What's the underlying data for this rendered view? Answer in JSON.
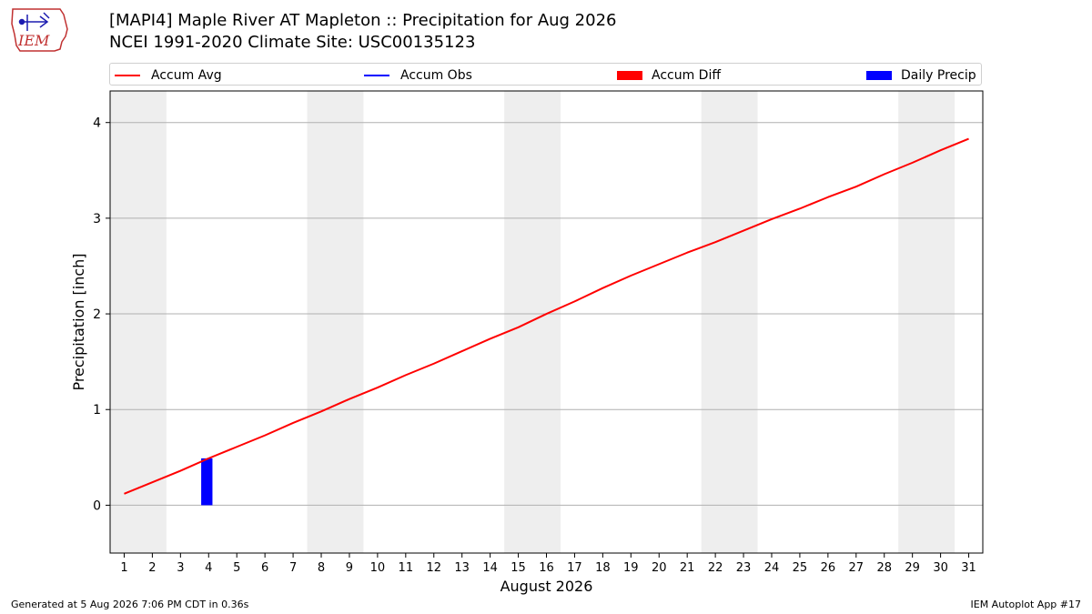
{
  "header": {
    "logo_text": "IEM",
    "title_line1": "[MAPI4] Maple River  AT Mapleton :: Precipitation for Aug 2026",
    "title_line2": "NCEI 1991-2020 Climate Site: USC00135123"
  },
  "legend": {
    "items": [
      {
        "label": "Accum Avg",
        "kind": "line",
        "color": "#ff0000"
      },
      {
        "label": "Accum Obs",
        "kind": "line",
        "color": "#0000ff"
      },
      {
        "label": "Accum Diff",
        "kind": "patch",
        "color": "#ff0000"
      },
      {
        "label": "Daily Precip",
        "kind": "patch",
        "color": "#0000ff"
      }
    ]
  },
  "colors": {
    "accum_avg": "#ff0000",
    "accum_obs": "#0000ff",
    "accum_diff": "#ff0000",
    "daily_precip": "#0000ff",
    "weekend_band": "#eeeeee",
    "grid": "#b0b0b0"
  },
  "chart_data": {
    "type": "line",
    "xlabel": "August 2026",
    "ylabel": "Precipitation [inch]",
    "x": [
      1,
      2,
      3,
      4,
      5,
      6,
      7,
      8,
      9,
      10,
      11,
      12,
      13,
      14,
      15,
      16,
      17,
      18,
      19,
      20,
      21,
      22,
      23,
      24,
      25,
      26,
      27,
      28,
      29,
      30,
      31
    ],
    "xlim": [
      0.5,
      31.5
    ],
    "ylim": [
      -0.5,
      4.33
    ],
    "yticks": [
      0,
      1,
      2,
      3,
      4
    ],
    "grid": "horizontal",
    "legend_position": "top",
    "shaded_weekends": [
      [
        1,
        2
      ],
      [
        8,
        9
      ],
      [
        15,
        16
      ],
      [
        22,
        23
      ],
      [
        29,
        30
      ]
    ],
    "series": [
      {
        "name": "Accum Avg",
        "kind": "line",
        "values": [
          0.12,
          0.24,
          0.36,
          0.49,
          0.61,
          0.73,
          0.86,
          0.98,
          1.11,
          1.23,
          1.36,
          1.48,
          1.61,
          1.74,
          1.86,
          2.0,
          2.13,
          2.27,
          2.4,
          2.52,
          2.64,
          2.75,
          2.87,
          2.99,
          3.1,
          3.22,
          3.33,
          3.46,
          3.58,
          3.71,
          3.83
        ]
      },
      {
        "name": "Daily Precip",
        "kind": "bar",
        "points": [
          {
            "x": 4,
            "value": 0.49
          }
        ]
      }
    ]
  },
  "footer": {
    "generated": "Generated at 5 Aug 2026 7:06 PM CDT in 0.36s",
    "app": "IEM Autoplot App #17"
  }
}
